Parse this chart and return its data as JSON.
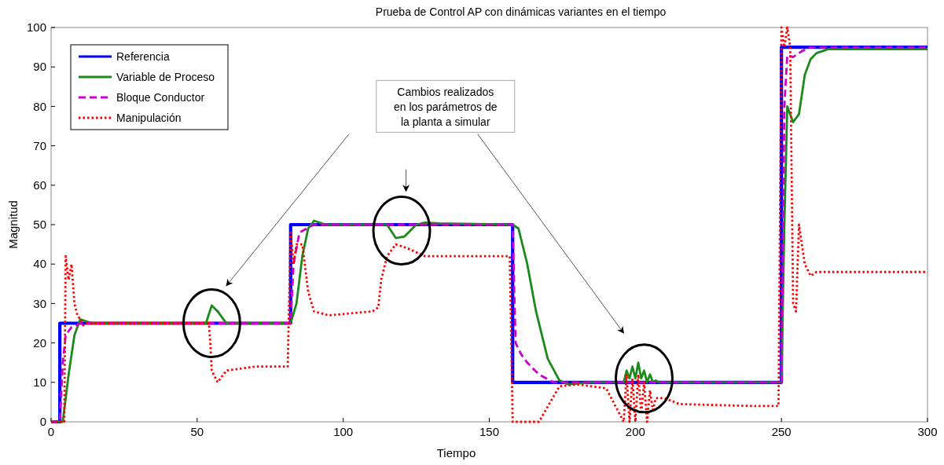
{
  "chart_data": {
    "type": "line",
    "title": "Prueba de Control AP con dinámicas variantes en el tiempo",
    "xlabel": "Tiempo",
    "ylabel": "Magnitud",
    "xlim": [
      0,
      300
    ],
    "ylim": [
      0,
      100
    ],
    "xticks": [
      0,
      50,
      100,
      150,
      200,
      250,
      300
    ],
    "yticks": [
      0,
      10,
      20,
      30,
      40,
      50,
      60,
      70,
      80,
      90,
      100
    ],
    "legend": "top left",
    "grid": false,
    "annotations": [
      "Cambios realizados en los parámetros de la planta a simular"
    ],
    "series": [
      {
        "name": "Referencia",
        "color": "#0000ff",
        "line_style": "solid",
        "x": [
          0,
          3,
          3,
          82,
          82,
          158,
          158,
          250,
          250,
          300
        ],
        "values": [
          0,
          0,
          25,
          25,
          50,
          50,
          10,
          10,
          95,
          95
        ]
      },
      {
        "name": "Variable de Proceso",
        "color": "#1a8a1a",
        "line_style": "solid",
        "x": [
          0,
          4,
          6,
          8,
          10,
          12,
          14,
          53,
          55,
          57,
          60,
          82,
          84,
          86,
          88,
          90,
          94,
          115,
          118,
          121,
          125,
          128,
          133,
          158,
          160,
          163,
          166,
          170,
          174,
          177,
          185,
          196,
          197,
          198,
          199,
          200,
          201,
          202,
          203,
          204,
          205,
          206,
          207,
          208,
          210,
          250,
          251,
          252,
          254,
          256,
          258,
          260,
          262,
          266,
          300
        ],
        "values": [
          0,
          0,
          12,
          22,
          26,
          25.5,
          25,
          25,
          29.5,
          28,
          25,
          25,
          30,
          42,
          49,
          51,
          50,
          50,
          46.6,
          47,
          50,
          50.5,
          50.3,
          50,
          49,
          40,
          28,
          16,
          10.5,
          9.5,
          10,
          10,
          13,
          11,
          14,
          11,
          15,
          11,
          13,
          10,
          12,
          10,
          10.5,
          10,
          10,
          10,
          50,
          80,
          76,
          78,
          88,
          92,
          93.5,
          94.5,
          94.5
        ]
      },
      {
        "name": "Bloque Conductor",
        "color": "#cc00cc",
        "line_style": "dashed",
        "x": [
          0,
          3,
          4,
          5,
          7,
          10,
          82,
          83,
          85,
          90,
          158,
          159,
          161,
          163,
          167,
          172,
          250,
          251,
          252,
          254,
          257,
          260,
          300
        ],
        "values": [
          0,
          0,
          15,
          22,
          24,
          25,
          25,
          40,
          48,
          50,
          50,
          20,
          17,
          15,
          12,
          10,
          10,
          80,
          93,
          92.5,
          94,
          95,
          95
        ]
      },
      {
        "name": "Manipulación",
        "color": "#ff0000",
        "line_style": "dotted",
        "x": [
          0,
          4.5,
          5,
          6,
          7,
          8,
          9,
          10,
          11,
          12,
          54,
          54.5,
          55,
          57,
          60,
          70,
          81,
          82,
          83,
          84,
          86,
          88,
          90,
          95,
          110,
          112,
          113,
          115,
          118,
          122,
          128,
          157,
          158,
          167,
          174,
          180,
          190,
          196,
          197,
          198,
          199,
          200,
          201,
          202,
          203,
          204,
          205,
          206,
          207,
          210,
          215,
          240,
          249,
          250,
          251,
          252,
          253,
          254,
          255,
          256,
          257,
          258,
          260,
          262,
          265,
          300
        ],
        "values": [
          0,
          0,
          42,
          36,
          40,
          30,
          27,
          26,
          24.5,
          25,
          25,
          20,
          13,
          10,
          13,
          14,
          14,
          48,
          40,
          45,
          45,
          33,
          28,
          27,
          28,
          29,
          36,
          42,
          45,
          44,
          42,
          42,
          0,
          0,
          9,
          9.5,
          8.5,
          0,
          12,
          0,
          11,
          0,
          12,
          2,
          10,
          0,
          8,
          3,
          6,
          6,
          4.5,
          4,
          4,
          100,
          95,
          100,
          95,
          30,
          28,
          50,
          45,
          40,
          37,
          38,
          38,
          38
        ]
      }
    ]
  }
}
